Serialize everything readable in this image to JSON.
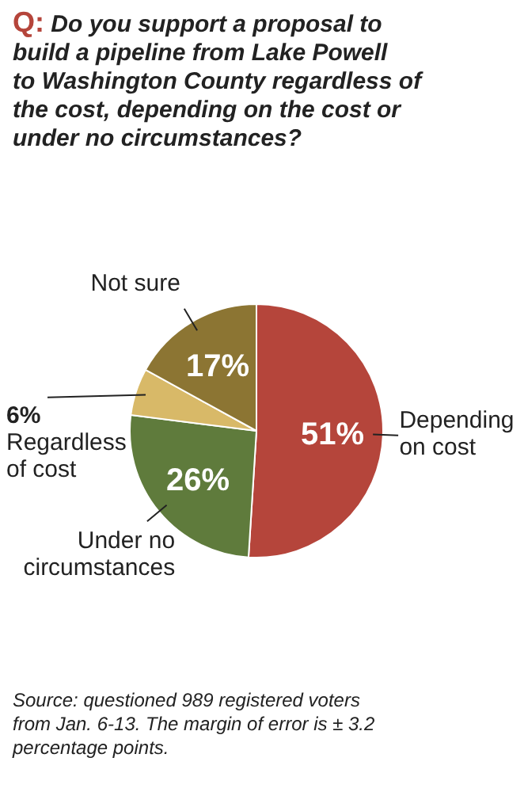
{
  "chart_data": {
    "type": "pie",
    "title": "Q: Do you support a proposal to build a pipeline from Lake Powell to Washington County regardless of the cost, depending on the cost or under no circumstances?",
    "categories": [
      "Depending on cost",
      "Under no circumstances",
      "Regardless of cost",
      "Not sure"
    ],
    "values": [
      51,
      26,
      6,
      17
    ],
    "value_labels": [
      "51%",
      "26%",
      "6%",
      "17%"
    ],
    "colors": [
      "#b5453b",
      "#5f7b3c",
      "#d8b968",
      "#8c7533"
    ],
    "annotations": [
      "Source: questioned 989 registered voters from Jan. 6-13. The margin of error is ± 3.2 percentage points."
    ]
  }
}
